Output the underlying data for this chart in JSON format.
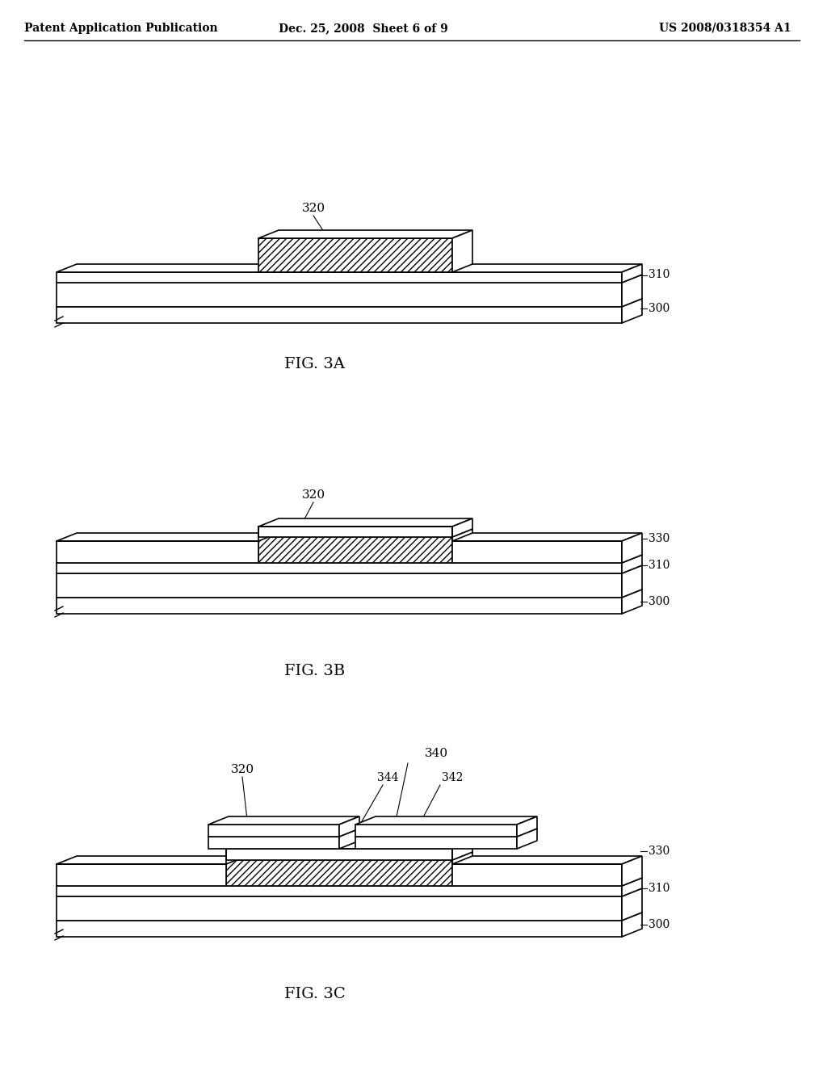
{
  "bg_color": "#ffffff",
  "header_left": "Patent Application Publication",
  "header_mid": "Dec. 25, 2008  Sheet 6 of 9",
  "header_right": "US 2008/0318354 A1",
  "fig3a_label": "FIG. 3A",
  "fig3b_label": "FIG. 3B",
  "fig3c_label": "FIG. 3C",
  "hatch_pattern": "////",
  "line_color": "#000000",
  "hatch_color": "#000000",
  "fill_color": "#ffffff"
}
